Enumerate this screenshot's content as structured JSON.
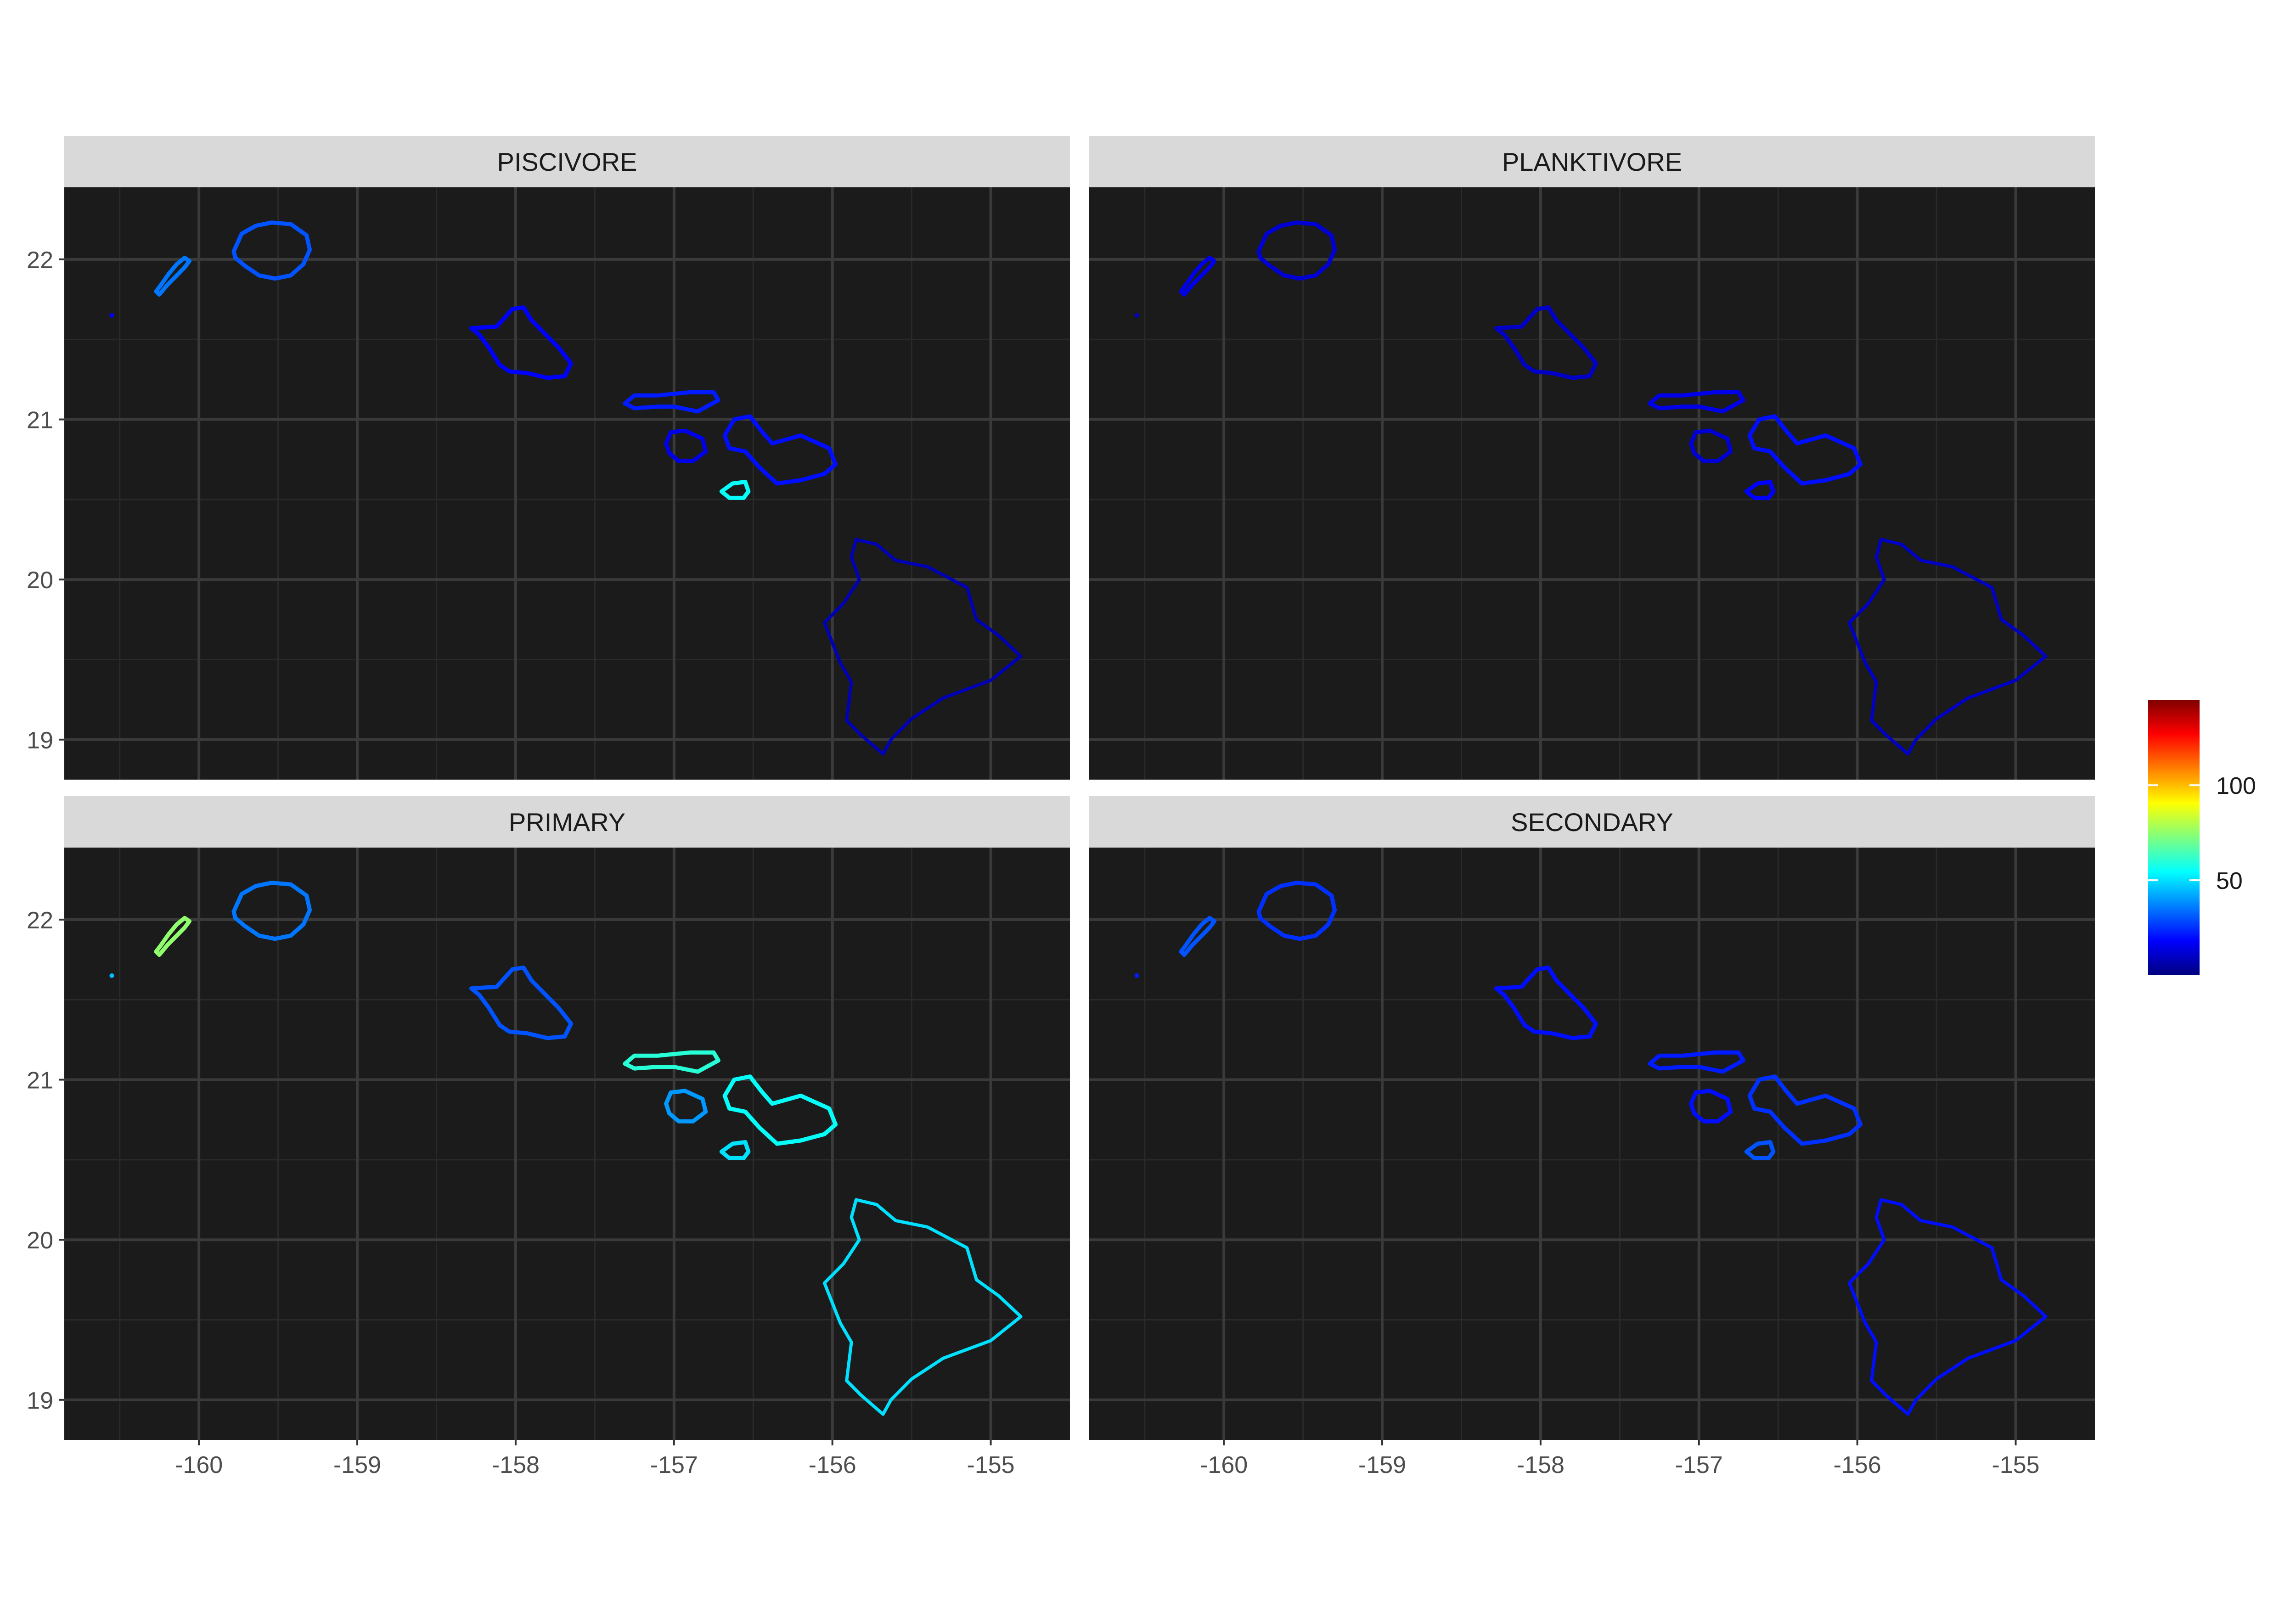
{
  "figure": {
    "background": "#ffffff",
    "panel_background": "#1b1b1b",
    "strip_background": "#d9d9d9",
    "grid_major_color": "#3a3a3a",
    "grid_minor_color": "#2a2a2a"
  },
  "chart_data": {
    "type": "faceted-map",
    "title": "",
    "xlabel": "",
    "ylabel": "",
    "xlim": [
      -160.85,
      -154.5
    ],
    "ylim": [
      18.75,
      22.45
    ],
    "x_ticks": [
      -160,
      -159,
      -158,
      -157,
      -156,
      -155
    ],
    "x_tick_labels": [
      "-160",
      "-159",
      "-158",
      "-157",
      "-156",
      "-155"
    ],
    "y_ticks": [
      19,
      20,
      21,
      22
    ],
    "y_tick_labels": [
      "19",
      "20",
      "21",
      "22"
    ],
    "grid": true,
    "legend": {
      "position": "right",
      "type": "colorbar",
      "range": [
        0,
        145
      ],
      "ticks": [
        50,
        100
      ],
      "tick_labels": [
        "50",
        "100"
      ],
      "colors": [
        "#00007f",
        "#0000ff",
        "#007fff",
        "#00ffff",
        "#7fff7f",
        "#ffff00",
        "#ff7f00",
        "#ff0000",
        "#7f0000"
      ]
    },
    "facets": [
      {
        "label": "PISCIVORE",
        "typical_value": 18,
        "island_values": {
          "niihau": 35,
          "kauai": 30,
          "oahu": 18,
          "molokai": 22,
          "lanai": 15,
          "maui": 20,
          "kahoolawe": 55,
          "hawaii": 8
        }
      },
      {
        "label": "PLANKTIVORE",
        "typical_value": 10,
        "island_values": {
          "niihau": 15,
          "kauai": 12,
          "oahu": 10,
          "molokai": 15,
          "lanai": 12,
          "maui": 20,
          "kahoolawe": 18,
          "hawaii": 10
        }
      },
      {
        "label": "PRIMARY",
        "typical_value": 45,
        "island_values": {
          "niihau": 75,
          "kauai": 35,
          "oahu": 30,
          "molokai": 60,
          "lanai": 40,
          "maui": 55,
          "kahoolawe": 50,
          "hawaii": 50
        }
      },
      {
        "label": "SECONDARY",
        "typical_value": 22,
        "island_values": {
          "niihau": 30,
          "kauai": 25,
          "oahu": 20,
          "molokai": 22,
          "lanai": 20,
          "maui": 25,
          "kahoolawe": 30,
          "hawaii": 20
        }
      }
    ],
    "islands": [
      {
        "name": "niihau",
        "coords": [
          [
            -160.25,
            21.78
          ],
          [
            -160.2,
            21.84
          ],
          [
            -160.14,
            21.9
          ],
          [
            -160.09,
            21.95
          ],
          [
            -160.06,
            21.99
          ],
          [
            -160.09,
            22.01
          ],
          [
            -160.14,
            21.97
          ],
          [
            -160.19,
            21.91
          ],
          [
            -160.24,
            21.84
          ],
          [
            -160.27,
            21.8
          ]
        ]
      },
      {
        "name": "kauai",
        "coords": [
          [
            -159.78,
            22.05
          ],
          [
            -159.73,
            22.16
          ],
          [
            -159.64,
            22.21
          ],
          [
            -159.54,
            22.23
          ],
          [
            -159.42,
            22.22
          ],
          [
            -159.32,
            22.15
          ],
          [
            -159.3,
            22.06
          ],
          [
            -159.34,
            21.97
          ],
          [
            -159.42,
            21.9
          ],
          [
            -159.52,
            21.88
          ],
          [
            -159.62,
            21.9
          ],
          [
            -159.71,
            21.96
          ],
          [
            -159.77,
            22.01
          ]
        ]
      },
      {
        "name": "oahu",
        "coords": [
          [
            -158.28,
            21.57
          ],
          [
            -158.12,
            21.58
          ],
          [
            -158.02,
            21.69
          ],
          [
            -157.95,
            21.7
          ],
          [
            -157.9,
            21.62
          ],
          [
            -157.81,
            21.53
          ],
          [
            -157.73,
            21.45
          ],
          [
            -157.65,
            21.35
          ],
          [
            -157.69,
            21.27
          ],
          [
            -157.8,
            21.26
          ],
          [
            -157.93,
            21.29
          ],
          [
            -158.04,
            21.3
          ],
          [
            -158.1,
            21.34
          ],
          [
            -158.17,
            21.45
          ],
          [
            -158.23,
            21.53
          ]
        ]
      },
      {
        "name": "molokai",
        "coords": [
          [
            -157.31,
            21.1
          ],
          [
            -157.25,
            21.15
          ],
          [
            -157.1,
            21.15
          ],
          [
            -156.9,
            21.17
          ],
          [
            -156.75,
            21.17
          ],
          [
            -156.72,
            21.12
          ],
          [
            -156.85,
            21.05
          ],
          [
            -157.0,
            21.08
          ],
          [
            -157.1,
            21.08
          ],
          [
            -157.25,
            21.07
          ]
        ]
      },
      {
        "name": "lanai",
        "coords": [
          [
            -157.05,
            20.85
          ],
          [
            -157.02,
            20.92
          ],
          [
            -156.93,
            20.93
          ],
          [
            -156.82,
            20.88
          ],
          [
            -156.8,
            20.8
          ],
          [
            -156.88,
            20.74
          ],
          [
            -156.97,
            20.74
          ],
          [
            -157.03,
            20.79
          ]
        ]
      },
      {
        "name": "maui",
        "coords": [
          [
            -156.68,
            20.9
          ],
          [
            -156.62,
            21.0
          ],
          [
            -156.52,
            21.02
          ],
          [
            -156.45,
            20.93
          ],
          [
            -156.38,
            20.85
          ],
          [
            -156.2,
            20.9
          ],
          [
            -156.02,
            20.82
          ],
          [
            -155.98,
            20.72
          ],
          [
            -156.05,
            20.66
          ],
          [
            -156.2,
            20.62
          ],
          [
            -156.35,
            20.6
          ],
          [
            -156.46,
            20.7
          ],
          [
            -156.55,
            20.8
          ],
          [
            -156.65,
            20.82
          ]
        ]
      },
      {
        "name": "kahoolawe",
        "coords": [
          [
            -156.7,
            20.55
          ],
          [
            -156.63,
            20.6
          ],
          [
            -156.55,
            20.61
          ],
          [
            -156.53,
            20.55
          ],
          [
            -156.56,
            20.51
          ],
          [
            -156.65,
            20.51
          ]
        ]
      },
      {
        "name": "hawaii",
        "coords": [
          [
            -155.85,
            20.25
          ],
          [
            -155.72,
            20.22
          ],
          [
            -155.6,
            20.12
          ],
          [
            -155.4,
            20.08
          ],
          [
            -155.15,
            19.95
          ],
          [
            -155.09,
            19.75
          ],
          [
            -154.95,
            19.65
          ],
          [
            -154.81,
            19.52
          ],
          [
            -155.0,
            19.37
          ],
          [
            -155.3,
            19.26
          ],
          [
            -155.5,
            19.13
          ],
          [
            -155.63,
            19.0
          ],
          [
            -155.68,
            18.91
          ],
          [
            -155.82,
            19.03
          ],
          [
            -155.91,
            19.12
          ],
          [
            -155.88,
            19.36
          ],
          [
            -155.95,
            19.48
          ],
          [
            -156.05,
            19.73
          ],
          [
            -155.93,
            19.85
          ],
          [
            -155.83,
            20.0
          ],
          [
            -155.88,
            20.14
          ]
        ]
      }
    ]
  }
}
